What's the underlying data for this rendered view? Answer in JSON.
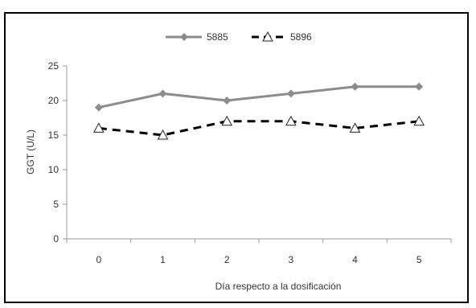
{
  "chart_data": {
    "type": "line",
    "title": "",
    "xlabel": "Día respecto a la dosificación",
    "ylabel": "GGT (U/L)",
    "categories": [
      "0",
      "1",
      "2",
      "3",
      "4",
      "5"
    ],
    "ylim": [
      0,
      25
    ],
    "yticks": [
      "0",
      "5",
      "10",
      "15",
      "20",
      "25"
    ],
    "grid": false,
    "legend_position": "top-center",
    "series": [
      {
        "name": "5885",
        "values": [
          19,
          21,
          20,
          21,
          22,
          22
        ],
        "color": "#8c8c8c",
        "line": "solid",
        "marker": "diamond"
      },
      {
        "name": "5896",
        "values": [
          16,
          15,
          17,
          17,
          16,
          17
        ],
        "color": "#000000",
        "line": "dashed",
        "marker": "triangle-open"
      }
    ]
  }
}
